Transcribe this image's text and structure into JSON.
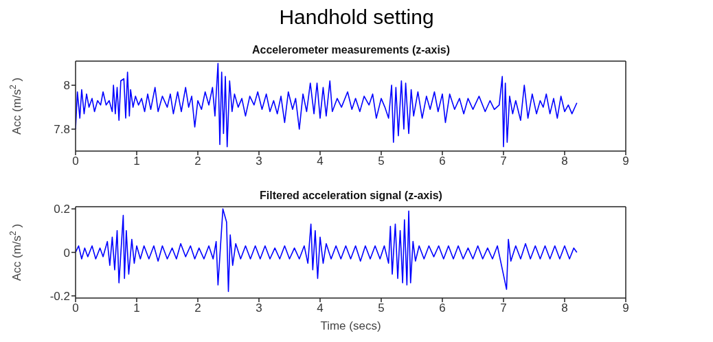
{
  "chart_data": [
    {
      "type": "line",
      "title": "Handhold setting",
      "subtitle": "Accelerometer measurements (z-axis)",
      "ylabel": "Acc (m/s$^{2}$)",
      "color": "#0000ff",
      "xlim": [
        0,
        9
      ],
      "xticks": [
        0,
        1,
        2,
        3,
        4,
        5,
        6,
        7,
        8,
        9
      ],
      "ylim": [
        7.7,
        8.11
      ],
      "yticks": [
        7.8,
        8
      ],
      "x": [
        0,
        0.03,
        0.07,
        0.1,
        0.14,
        0.18,
        0.22,
        0.27,
        0.31,
        0.36,
        0.41,
        0.45,
        0.5,
        0.55,
        0.6,
        0.62,
        0.65,
        0.68,
        0.71,
        0.74,
        0.76,
        0.79,
        0.82,
        0.85,
        0.88,
        0.9,
        0.94,
        0.98,
        1.03,
        1.08,
        1.13,
        1.18,
        1.23,
        1.3,
        1.35,
        1.42,
        1.5,
        1.55,
        1.6,
        1.67,
        1.73,
        1.8,
        1.85,
        1.9,
        1.95,
        2.0,
        2.06,
        2.12,
        2.18,
        2.24,
        2.28,
        2.33,
        2.36,
        2.39,
        2.42,
        2.45,
        2.48,
        2.52,
        2.56,
        2.6,
        2.66,
        2.72,
        2.78,
        2.85,
        2.92,
        2.98,
        3.05,
        3.12,
        3.18,
        3.24,
        3.3,
        3.36,
        3.42,
        3.48,
        3.55,
        3.6,
        3.66,
        3.72,
        3.78,
        3.84,
        3.9,
        3.95,
        4.0,
        4.05,
        4.1,
        4.16,
        4.2,
        4.28,
        4.35,
        4.45,
        4.52,
        4.58,
        4.65,
        4.72,
        4.8,
        4.86,
        4.92,
        5.0,
        5.06,
        5.12,
        5.17,
        5.2,
        5.24,
        5.28,
        5.33,
        5.37,
        5.4,
        5.42,
        5.45,
        5.49,
        5.53,
        5.6,
        5.67,
        5.74,
        5.8,
        5.87,
        5.93,
        6.0,
        6.05,
        6.12,
        6.2,
        6.28,
        6.35,
        6.42,
        6.5,
        6.6,
        6.7,
        6.78,
        6.85,
        6.93,
        6.98,
        7.0,
        7.03,
        7.06,
        7.1,
        7.15,
        7.2,
        7.28,
        7.34,
        7.4,
        7.47,
        7.54,
        7.6,
        7.65,
        7.7,
        7.76,
        7.82,
        7.88,
        7.94,
        8.0,
        8.06,
        8.12,
        8.2
      ],
      "values": [
        7.8,
        7.97,
        7.85,
        7.98,
        7.87,
        7.96,
        7.9,
        7.94,
        7.88,
        7.93,
        7.91,
        7.97,
        7.91,
        7.93,
        7.88,
        8.0,
        7.87,
        7.99,
        7.84,
        8.02,
        null,
        8.03,
        7.85,
        8.06,
        7.86,
        7.98,
        7.9,
        7.95,
        7.91,
        7.94,
        7.88,
        7.96,
        7.89,
        7.99,
        7.88,
        7.95,
        7.9,
        7.96,
        7.87,
        7.97,
        7.88,
        7.99,
        7.9,
        7.95,
        7.81,
        7.93,
        7.89,
        7.97,
        7.91,
        7.99,
        7.86,
        8.1,
        7.73,
        8.06,
        7.78,
        8.04,
        7.72,
        8.02,
        7.88,
        7.96,
        7.9,
        7.94,
        7.86,
        7.95,
        7.91,
        7.97,
        7.89,
        7.96,
        7.88,
        7.93,
        7.87,
        7.95,
        7.83,
        7.97,
        7.89,
        7.94,
        7.8,
        7.96,
        7.88,
        8.01,
        7.87,
        8.01,
        7.85,
        7.99,
        7.86,
        8.02,
        7.88,
        7.94,
        7.9,
        7.97,
        7.89,
        7.94,
        7.88,
        7.95,
        7.91,
        7.96,
        7.85,
        7.94,
        7.9,
        7.85,
        8.0,
        7.74,
        7.99,
        7.77,
        8.02,
        7.8,
        8.01,
        null,
        7.78,
        7.98,
        7.86,
        7.97,
        7.85,
        7.95,
        7.89,
        7.97,
        7.88,
        7.96,
        7.83,
        7.96,
        7.89,
        7.94,
        7.87,
        7.94,
        7.89,
        7.95,
        7.88,
        7.93,
        7.89,
        7.91,
        8.04,
        7.72,
        8.01,
        7.74,
        7.95,
        7.87,
        7.93,
        7.84,
        8.0,
        7.85,
        7.96,
        7.87,
        7.93,
        7.9,
        7.96,
        7.87,
        7.94,
        7.85,
        7.95,
        7.88,
        7.91,
        7.87,
        7.92
      ]
    },
    {
      "type": "line",
      "title": "Filtered acceleration signal (z-axis)",
      "xlabel": "Time (secs)",
      "ylabel": "Acc (m/s$^{2}$)",
      "color": "#0000ff",
      "xlim": [
        0,
        9
      ],
      "xticks": [
        0,
        1,
        2,
        3,
        4,
        5,
        6,
        7,
        8,
        9
      ],
      "ylim": [
        -0.21,
        0.21
      ],
      "yticks": [
        -0.2,
        0,
        0.2
      ],
      "x": [
        0,
        0.05,
        0.1,
        0.15,
        0.2,
        0.27,
        0.33,
        0.4,
        0.45,
        0.52,
        0.56,
        0.6,
        0.64,
        0.68,
        0.71,
        0.74,
        0.76,
        0.78,
        0.8,
        0.83,
        0.87,
        0.9,
        0.92,
        0.96,
        1.0,
        1.06,
        1.12,
        1.2,
        1.28,
        1.35,
        1.42,
        1.5,
        1.58,
        1.65,
        1.72,
        1.8,
        1.88,
        1.95,
        2.02,
        2.1,
        2.18,
        2.25,
        2.3,
        2.33,
        2.35,
        2.38,
        2.41,
        2.44,
        2.47,
        2.5,
        2.53,
        2.57,
        2.62,
        2.7,
        2.78,
        2.86,
        2.94,
        3.02,
        3.1,
        3.18,
        3.26,
        3.34,
        3.42,
        3.5,
        3.58,
        3.66,
        3.74,
        3.8,
        3.85,
        3.88,
        3.92,
        3.96,
        4.0,
        4.05,
        4.1,
        4.18,
        4.26,
        4.34,
        4.42,
        4.5,
        4.58,
        4.66,
        4.74,
        4.82,
        4.9,
        4.98,
        5.05,
        5.12,
        5.15,
        5.18,
        5.2,
        5.23,
        5.27,
        5.31,
        5.35,
        5.38,
        5.4,
        5.42,
        5.45,
        5.48,
        5.52,
        5.56,
        5.62,
        5.7,
        5.78,
        5.86,
        5.94,
        6.02,
        6.1,
        6.18,
        6.26,
        6.34,
        6.42,
        6.5,
        6.58,
        6.66,
        6.74,
        6.82,
        6.9,
        6.96,
        6.99,
        7.01,
        7.03,
        7.05,
        7.08,
        7.12,
        7.2,
        7.28,
        7.36,
        7.44,
        7.52,
        7.6,
        7.68,
        7.76,
        7.84,
        7.92,
        8.0,
        8.08,
        8.15,
        8.2
      ],
      "values": [
        0,
        0.03,
        -0.03,
        0.02,
        -0.02,
        0.03,
        -0.03,
        0.02,
        -0.02,
        0.05,
        -0.06,
        0.07,
        -0.08,
        0.1,
        -0.14,
        null,
        null,
        0.17,
        -0.12,
        0.1,
        -0.1,
        null,
        0.06,
        -0.05,
        0.03,
        -0.03,
        0.03,
        -0.03,
        0.03,
        -0.04,
        0.03,
        -0.03,
        0.02,
        -0.03,
        0.04,
        -0.02,
        0.03,
        -0.03,
        0.02,
        -0.03,
        0.03,
        -0.03,
        0.05,
        -0.15,
        null,
        null,
        0.2,
        null,
        0.14,
        -0.18,
        0.08,
        -0.06,
        0.04,
        -0.03,
        0.03,
        -0.03,
        0.03,
        -0.03,
        0.03,
        -0.03,
        0.02,
        -0.03,
        0.03,
        -0.03,
        0.02,
        -0.03,
        0.03,
        -0.05,
        0.13,
        -0.08,
        0.1,
        -0.12,
        0.07,
        -0.05,
        0.04,
        -0.03,
        0.03,
        -0.03,
        0.03,
        -0.03,
        0.03,
        -0.04,
        0.03,
        -0.03,
        0.03,
        -0.03,
        0.03,
        -0.05,
        0.12,
        -0.1,
        null,
        0.13,
        -0.12,
        0.1,
        -0.14,
        0.15,
        null,
        -0.15,
        0.19,
        -0.14,
        0.05,
        -0.04,
        0.03,
        -0.03,
        0.03,
        -0.02,
        0.03,
        -0.03,
        0.03,
        -0.03,
        0.03,
        -0.03,
        0.02,
        -0.03,
        0.03,
        -0.03,
        0.02,
        -0.03,
        0.03,
        -0.05,
        null,
        null,
        null,
        -0.17,
        0.06,
        -0.04,
        0.03,
        -0.03,
        0.04,
        -0.03,
        0.03,
        -0.03,
        0.03,
        -0.03,
        0.03,
        -0.03,
        0.03,
        -0.03,
        0.02,
        0
      ]
    }
  ]
}
